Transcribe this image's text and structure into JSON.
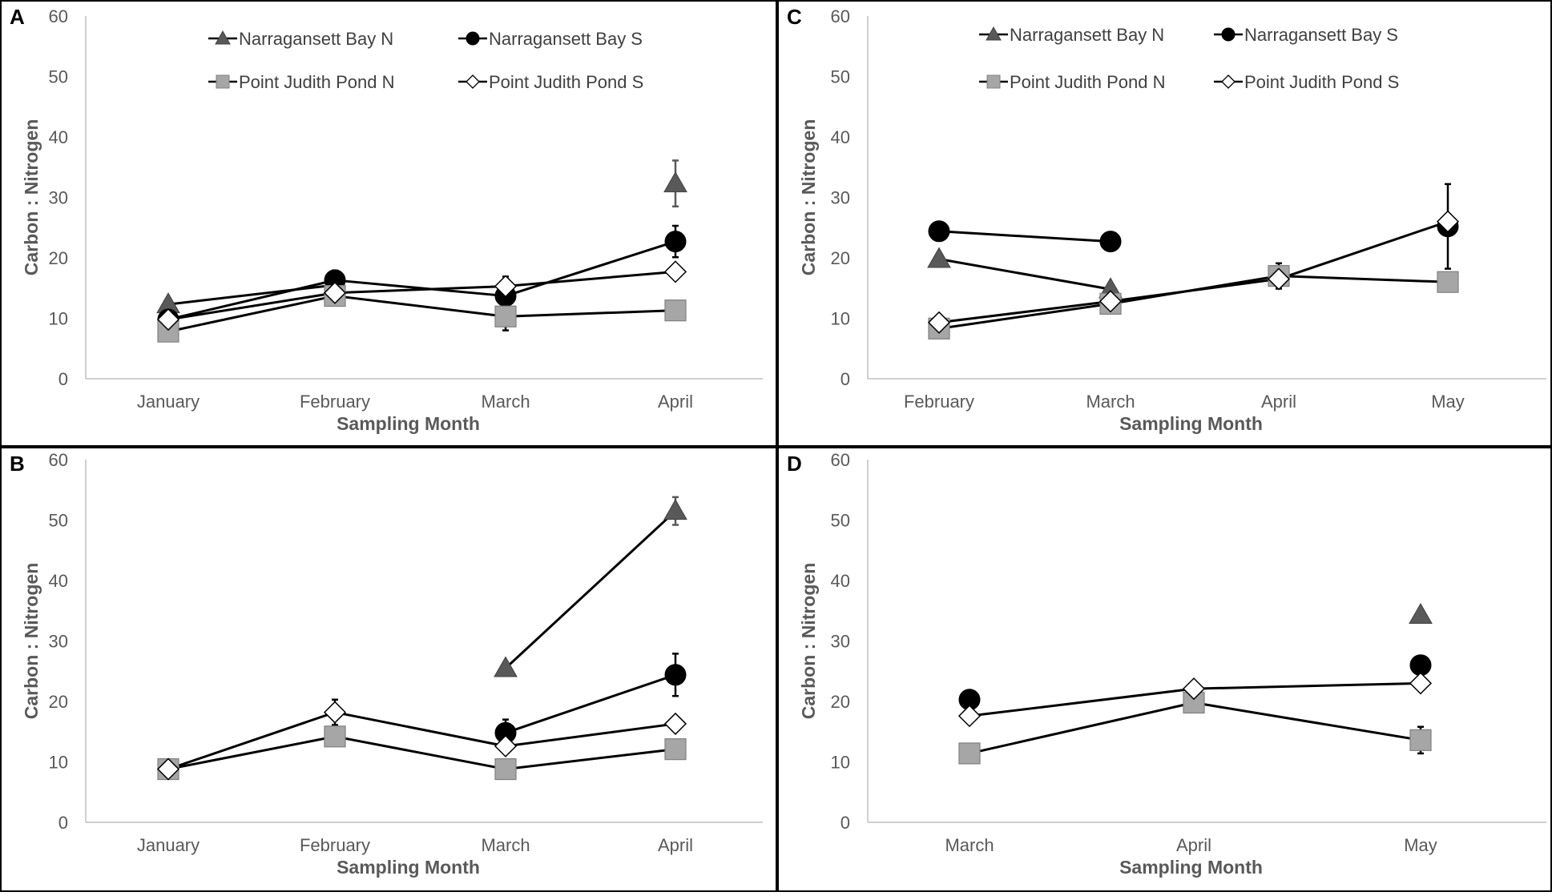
{
  "figure": {
    "legend_entries": [
      "Narragansett Bay N",
      "Narragansett Bay S",
      "Point Judith Pond N",
      "Point Judith Pond S"
    ]
  },
  "chart_data": [
    {
      "panel": "A",
      "type": "line",
      "title": "",
      "xlabel": "Sampling Month",
      "ylabel": "Carbon : Nitrogen",
      "ylim": [
        0,
        60
      ],
      "yticks": [
        0,
        10,
        20,
        30,
        40,
        50,
        60
      ],
      "categories": [
        "January",
        "February",
        "March",
        "April"
      ],
      "legend": true,
      "series": [
        {
          "name": "Narragansett Bay N",
          "marker": "triangle",
          "color": "#595959",
          "values": [
            12.3,
            15.5,
            null,
            32.3
          ],
          "errors": [
            0,
            0,
            0,
            3.8
          ]
        },
        {
          "name": "Narragansett Bay S",
          "marker": "circle",
          "color": "#000000",
          "values": [
            9.8,
            16.3,
            13.7,
            22.7
          ],
          "errors": [
            0,
            1.6,
            0,
            2.6
          ]
        },
        {
          "name": "Point Judith Pond N",
          "marker": "square",
          "color": "#a6a6a6",
          "values": [
            7.8,
            13.7,
            10.3,
            11.3
          ],
          "errors": [
            0,
            1.3,
            2.3,
            0
          ]
        },
        {
          "name": "Point Judith Pond S",
          "marker": "diamond",
          "color": "#ffffff",
          "values": [
            9.8,
            14.2,
            15.3,
            17.7
          ],
          "errors": [
            0,
            0,
            1.6,
            0
          ]
        }
      ]
    },
    {
      "panel": "B",
      "type": "line",
      "title": "",
      "xlabel": "Sampling Month",
      "ylabel": "Carbon : Nitrogen",
      "ylim": [
        0,
        60
      ],
      "yticks": [
        0,
        10,
        20,
        30,
        40,
        50,
        60
      ],
      "categories": [
        "January",
        "February",
        "March",
        "April"
      ],
      "legend": false,
      "series": [
        {
          "name": "Narragansett Bay N",
          "marker": "triangle",
          "color": "#595959",
          "values": [
            null,
            null,
            25.5,
            51.5
          ],
          "errors": [
            0,
            0,
            0,
            2.3
          ]
        },
        {
          "name": "Narragansett Bay S",
          "marker": "circle",
          "color": "#000000",
          "values": [
            null,
            null,
            14.8,
            24.4
          ],
          "errors": [
            0,
            0,
            2.2,
            3.5
          ]
        },
        {
          "name": "Point Judith Pond N",
          "marker": "square",
          "color": "#a6a6a6",
          "values": [
            8.8,
            14.2,
            8.8,
            12.1
          ],
          "errors": [
            0,
            1.3,
            0,
            0
          ]
        },
        {
          "name": "Point Judith Pond S",
          "marker": "diamond",
          "color": "#ffffff",
          "values": [
            8.8,
            18.2,
            12.6,
            16.3
          ],
          "errors": [
            0,
            2.1,
            0,
            0
          ]
        }
      ]
    },
    {
      "panel": "C",
      "type": "line",
      "title": "",
      "xlabel": "Sampling Month",
      "ylabel": "Carbon : Nitrogen",
      "ylim": [
        0,
        60
      ],
      "yticks": [
        0,
        10,
        20,
        30,
        40,
        50,
        60
      ],
      "categories": [
        "February",
        "March",
        "April",
        "May"
      ],
      "legend": true,
      "series": [
        {
          "name": "Narragansett Bay N",
          "marker": "triangle",
          "color": "#595959",
          "values": [
            19.8,
            14.8,
            null,
            null
          ],
          "errors": [
            0,
            0,
            0,
            0
          ]
        },
        {
          "name": "Narragansett Bay S",
          "marker": "circle",
          "color": "#000000",
          "values": [
            24.4,
            22.7,
            null,
            25.2
          ],
          "errors": [
            0,
            0,
            0,
            7.0
          ]
        },
        {
          "name": "Point Judith Pond N",
          "marker": "square",
          "color": "#a6a6a6",
          "values": [
            8.3,
            12.4,
            17.0,
            16.0
          ],
          "errors": [
            0,
            0,
            2.1,
            1.5
          ]
        },
        {
          "name": "Point Judith Pond S",
          "marker": "diamond",
          "color": "#ffffff",
          "values": [
            9.3,
            12.8,
            16.5,
            26.0
          ],
          "errors": [
            0,
            0,
            0,
            0
          ]
        }
      ]
    },
    {
      "panel": "D",
      "type": "line",
      "title": "",
      "xlabel": "Sampling Month",
      "ylabel": "Carbon : Nitrogen",
      "ylim": [
        0,
        60
      ],
      "yticks": [
        0,
        10,
        20,
        30,
        40,
        50,
        60
      ],
      "categories": [
        "March",
        "April",
        "May"
      ],
      "legend": false,
      "series": [
        {
          "name": "Narragansett Bay N",
          "marker": "triangle",
          "color": "#595959",
          "values": [
            null,
            null,
            34.3
          ],
          "errors": [
            0,
            0,
            0
          ]
        },
        {
          "name": "Narragansett Bay S",
          "marker": "circle",
          "color": "#000000",
          "values": [
            20.3,
            null,
            26.0
          ],
          "errors": [
            0,
            0,
            0
          ]
        },
        {
          "name": "Point Judith Pond N",
          "marker": "square",
          "color": "#a6a6a6",
          "values": [
            11.4,
            19.8,
            13.6
          ],
          "errors": [
            0,
            0,
            2.2
          ]
        },
        {
          "name": "Point Judith Pond S",
          "marker": "diamond",
          "color": "#ffffff",
          "values": [
            17.6,
            22.1,
            23.0
          ],
          "errors": [
            0,
            0,
            0
          ]
        }
      ]
    }
  ]
}
